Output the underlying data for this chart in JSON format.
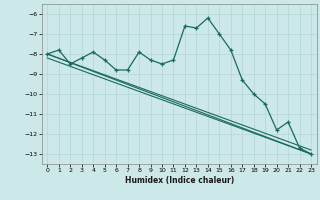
{
  "xlabel": "Humidex (Indice chaleur)",
  "ylabel": "",
  "background_color": "#cce8e8",
  "grid_color": "#b8d8d8",
  "line_color": "#1a6b5a",
  "xlim": [
    -0.5,
    23.5
  ],
  "ylim": [
    -13.5,
    -5.5
  ],
  "yticks": [
    -13,
    -12,
    -11,
    -10,
    -9,
    -8,
    -7,
    -6
  ],
  "xticks": [
    0,
    1,
    2,
    3,
    4,
    5,
    6,
    7,
    8,
    9,
    10,
    11,
    12,
    13,
    14,
    15,
    16,
    17,
    18,
    19,
    20,
    21,
    22,
    23
  ],
  "line1_x": [
    0,
    1,
    2,
    3,
    4,
    5,
    6,
    7,
    8,
    9,
    10,
    11,
    12,
    13,
    14,
    15,
    16,
    17,
    18,
    19,
    20,
    21,
    22,
    23
  ],
  "line1_y": [
    -8.0,
    -7.8,
    -8.5,
    -8.2,
    -7.9,
    -8.3,
    -8.8,
    -8.8,
    -7.9,
    -8.3,
    -8.5,
    -8.3,
    -6.6,
    -6.7,
    -6.2,
    -7.0,
    -7.8,
    -9.3,
    -10.0,
    -10.5,
    -11.8,
    -11.4,
    -12.7,
    -13.0
  ],
  "line2_x": [
    0,
    23
  ],
  "line2_y": [
    -8.0,
    -13.0
  ],
  "line3_x": [
    0,
    23
  ],
  "line3_y": [
    -8.0,
    -12.8
  ],
  "line4_x": [
    0,
    23
  ],
  "line4_y": [
    -8.2,
    -13.0
  ]
}
